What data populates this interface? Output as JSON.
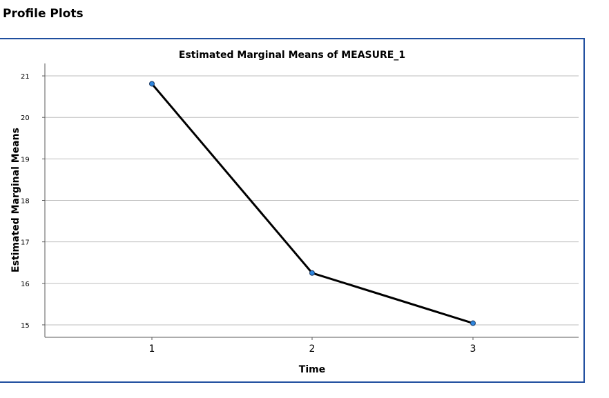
{
  "page": {
    "heading": "Profile Plots"
  },
  "chart_data": {
    "type": "line",
    "title": "Estimated Marginal Means of MEASURE_1",
    "xlabel": "Time",
    "ylabel": "Estimated Marginal Means",
    "categories": [
      "1",
      "2",
      "3"
    ],
    "series": [
      {
        "values": [
          20.81,
          16.25,
          15.04
        ]
      }
    ],
    "ylim": [
      14.7,
      21.3
    ],
    "yticks": [
      15,
      16,
      17,
      18,
      19,
      20,
      21
    ],
    "grid": true,
    "legend": "none",
    "colors": {
      "line": "#000000",
      "marker": "#2e86de",
      "frame": "#1f4e9e",
      "grid": "#bdbdbd"
    }
  }
}
